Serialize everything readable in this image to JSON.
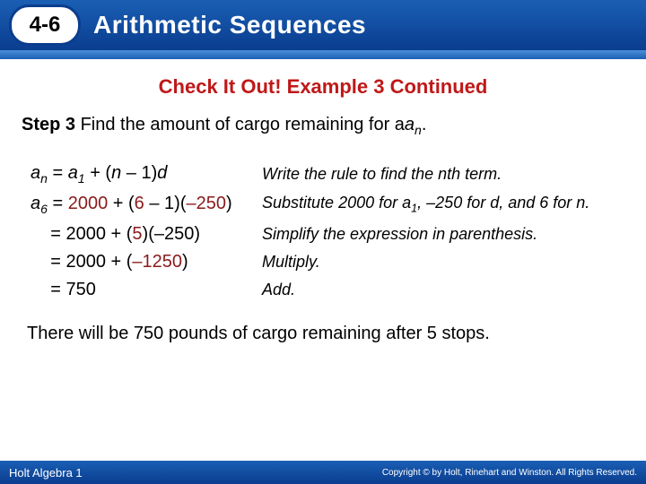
{
  "header": {
    "lesson_number": "4-6",
    "lesson_title": "Arithmetic Sequences"
  },
  "check_title": "Check It Out! Example 3 Continued",
  "step": {
    "label": "Step 3",
    "text": "Find the amount of cargo remaining for a",
    "subscript": "n",
    "period": "."
  },
  "rows": [
    {
      "left_html": "<span class='ital'>a</span><span class='sub'>n</span> = <span class='ital'>a</span><span class='sub'>1</span> + (<span class='ital'>n</span> – 1)<span class='ital'>d</span>",
      "right_html": "Write the rule to find the nth term."
    },
    {
      "left_html": "<span class='ital'>a</span><span class='sub'>6</span> = <span class='maroon'>2000</span> + (<span class='maroon'>6</span> – 1)(<span class='maroon'>–250</span>)",
      "right_html": "Substitute 2000 for a<span class='sub1'>1</span>, –250 for d, and 6 for n."
    },
    {
      "left_html": "&nbsp;&nbsp;&nbsp;&nbsp;= 2000 + (<span class='maroon'>5</span>)(–250)",
      "right_html": "Simplify the expression in parenthesis."
    },
    {
      "left_html": "&nbsp;&nbsp;&nbsp;&nbsp;= 2000 + (<span class='maroon'>–1250</span>)",
      "right_html": "Multiply."
    },
    {
      "left_html": "&nbsp;&nbsp;&nbsp;&nbsp;= 750",
      "right_html": "Add."
    }
  ],
  "conclusion": "There will be 750 pounds of cargo remaining after 5 stops.",
  "footer": {
    "left": "Holt Algebra 1",
    "right": "Copyright © by Holt, Rinehart and Winston. All Rights Reserved."
  },
  "colors": {
    "header_gradient_top": "#1a5fb4",
    "header_gradient_bottom": "#0a3d8f",
    "check_title": "#c01818",
    "maroon": "#8b1a1a",
    "white": "#ffffff",
    "black": "#000000"
  }
}
